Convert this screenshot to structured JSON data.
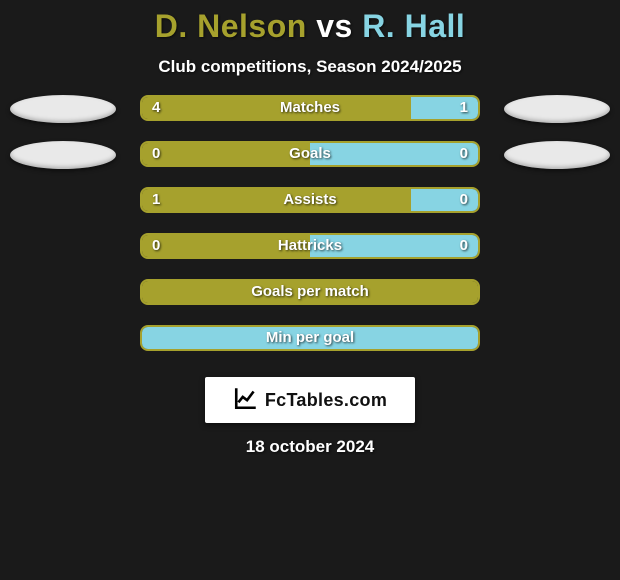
{
  "title": {
    "player1": "D. Nelson",
    "vs": "vs",
    "player2": "R. Hall"
  },
  "subtitle": "Club competitions, Season 2024/2025",
  "colors": {
    "player1": "#a6a12d",
    "player2": "#87d4e3",
    "ellipse": "#e9e9e9",
    "track_border": "#a6a12d",
    "track_bg": "#1a1a1a"
  },
  "stats": [
    {
      "label": "Matches",
      "left_value": "4",
      "right_value": "1",
      "left_pct": 80,
      "right_pct": 20,
      "show_left_ellipse": true,
      "show_right_ellipse": true
    },
    {
      "label": "Goals",
      "left_value": "0",
      "right_value": "0",
      "left_pct": 50,
      "right_pct": 50,
      "show_left_ellipse": true,
      "show_right_ellipse": true
    },
    {
      "label": "Assists",
      "left_value": "1",
      "right_value": "0",
      "left_pct": 80,
      "right_pct": 20,
      "show_left_ellipse": false,
      "show_right_ellipse": false
    },
    {
      "label": "Hattricks",
      "left_value": "0",
      "right_value": "0",
      "left_pct": 50,
      "right_pct": 50,
      "show_left_ellipse": false,
      "show_right_ellipse": false
    },
    {
      "label": "Goals per match",
      "left_value": "",
      "right_value": "",
      "left_pct": 100,
      "right_pct": 0,
      "show_left_ellipse": false,
      "show_right_ellipse": false
    },
    {
      "label": "Min per goal",
      "left_value": "",
      "right_value": "",
      "left_pct": 0,
      "right_pct": 100,
      "show_left_ellipse": false,
      "show_right_ellipse": false
    }
  ],
  "footer": {
    "brand": "FcTables.com",
    "date": "18 october 2024"
  }
}
